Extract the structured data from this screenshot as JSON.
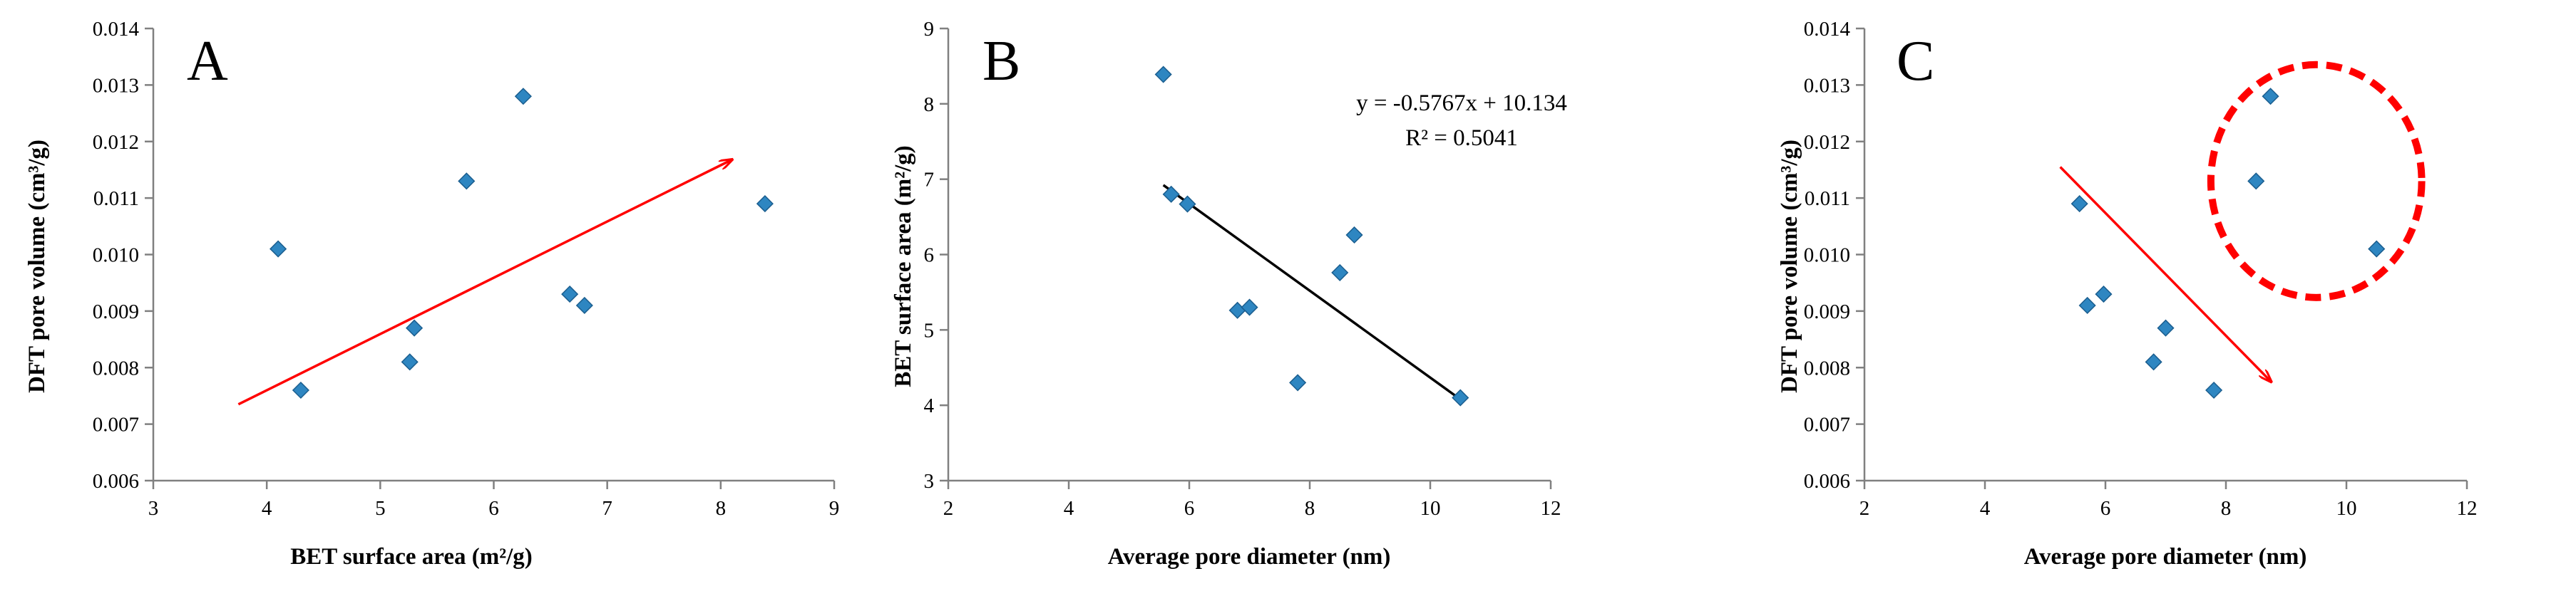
{
  "chart_data": [
    {
      "type": "scatter",
      "panel": "A",
      "xlabel": "BET surface area (m²/g)",
      "ylabel": "DFT pore volume (cm³/g)",
      "xlim": [
        3,
        9
      ],
      "ylim": [
        0.006,
        0.014
      ],
      "xticks": [
        "3",
        "4",
        "5",
        "6",
        "7",
        "8",
        "9"
      ],
      "yticks": [
        "0.006",
        "0.007",
        "0.008",
        "0.009",
        "0.010",
        "0.011",
        "0.012",
        "0.013",
        "0.014"
      ],
      "points": [
        {
          "x": 4.1,
          "y": 0.0101
        },
        {
          "x": 4.3,
          "y": 0.0076
        },
        {
          "x": 5.26,
          "y": 0.0081
        },
        {
          "x": 5.3,
          "y": 0.0087
        },
        {
          "x": 5.76,
          "y": 0.0113
        },
        {
          "x": 6.26,
          "y": 0.0128
        },
        {
          "x": 6.67,
          "y": 0.0093
        },
        {
          "x": 6.8,
          "y": 0.0091
        },
        {
          "x": 8.39,
          "y": 0.0109
        }
      ],
      "arrow": {
        "from": [
          3.75,
          0.00735
        ],
        "to": [
          8.1,
          0.01168
        ],
        "color": "#ff0000"
      }
    },
    {
      "type": "scatter",
      "panel": "B",
      "xlabel": "Average pore diameter (nm)",
      "ylabel": "BET surface area (m²/g)",
      "xlim": [
        2,
        12
      ],
      "ylim": [
        3,
        9
      ],
      "xticks": [
        "2",
        "4",
        "6",
        "8",
        "10",
        "12"
      ],
      "yticks": [
        "3",
        "4",
        "5",
        "6",
        "7",
        "8",
        "9"
      ],
      "points": [
        {
          "x": 5.57,
          "y": 8.39
        },
        {
          "x": 5.7,
          "y": 6.8
        },
        {
          "x": 5.97,
          "y": 6.67
        },
        {
          "x": 6.8,
          "y": 5.26
        },
        {
          "x": 7.0,
          "y": 5.3
        },
        {
          "x": 7.8,
          "y": 4.3
        },
        {
          "x": 8.5,
          "y": 5.76
        },
        {
          "x": 8.74,
          "y": 6.26
        },
        {
          "x": 10.5,
          "y": 4.1
        }
      ],
      "trendline": {
        "slope": -0.5767,
        "intercept": 10.134,
        "x_range": [
          5.57,
          10.5
        ],
        "color": "#000000"
      },
      "equation": "y = -0.5767x + 10.134",
      "r_squared": "R² = 0.5041"
    },
    {
      "type": "scatter",
      "panel": "C",
      "xlabel": "Average pore diameter (nm)",
      "ylabel": "DFT pore volume (cm³/g)",
      "xlim": [
        2,
        12
      ],
      "ylim": [
        0.006,
        0.014
      ],
      "xticks": [
        "2",
        "4",
        "6",
        "8",
        "10",
        "12"
      ],
      "yticks": [
        "0.006",
        "0.007",
        "0.008",
        "0.009",
        "0.010",
        "0.011",
        "0.012",
        "0.013",
        "0.014"
      ],
      "points": [
        {
          "x": 5.57,
          "y": 0.0109
        },
        {
          "x": 5.7,
          "y": 0.0091
        },
        {
          "x": 5.97,
          "y": 0.0093
        },
        {
          "x": 6.8,
          "y": 0.0081
        },
        {
          "x": 7.0,
          "y": 0.0087
        },
        {
          "x": 7.8,
          "y": 0.0076
        },
        {
          "x": 8.5,
          "y": 0.0113
        },
        {
          "x": 8.74,
          "y": 0.0128
        },
        {
          "x": 10.5,
          "y": 0.0101
        }
      ],
      "arrow": {
        "from": [
          5.25,
          0.01155
        ],
        "to": [
          8.75,
          0.00775
        ],
        "color": "#ff0000"
      },
      "circle": {
        "cx": 9.5,
        "cy": 0.0113,
        "rx": 1.75,
        "ry": 0.00206,
        "color": "#ff0000",
        "style": "dashed"
      }
    }
  ],
  "panels": {
    "A": "A",
    "B": "B",
    "C": "C"
  },
  "colors": {
    "marker": "#2e86c1",
    "marker_edge": "#1b5e8f",
    "axis": "#808080",
    "annotation": "#ff0000",
    "trend": "#000000"
  }
}
